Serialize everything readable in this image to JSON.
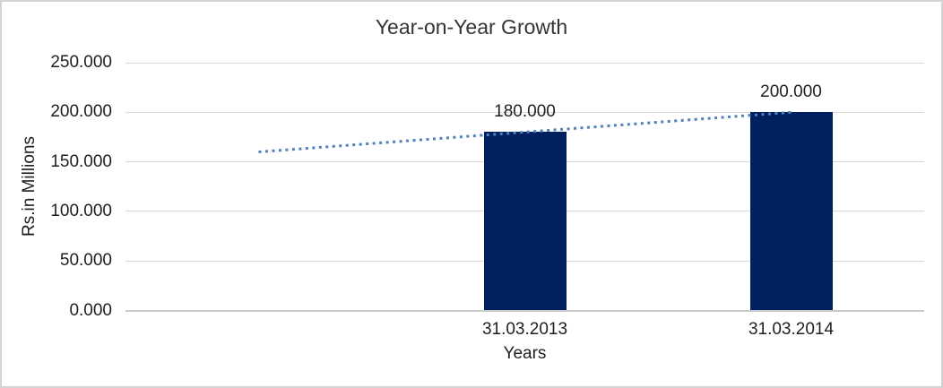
{
  "window": {
    "background": "#ffffff",
    "border_color": "#d3d3d3"
  },
  "chart_data": {
    "type": "bar",
    "title": "Year-on-Year Growth",
    "xlabel": "Years",
    "ylabel": "Rs.in Millions",
    "categories": [
      "",
      "31.03.2013",
      "31.03.2014"
    ],
    "values": [
      null,
      180,
      200
    ],
    "value_labels": [
      "",
      "180.000",
      "200.000"
    ],
    "ylim": [
      0,
      250
    ],
    "yticks": [
      0,
      50,
      100,
      150,
      200,
      250
    ],
    "ytick_labels": [
      "0.000",
      "50.000",
      "100.000",
      "150.000",
      "200.000",
      "250.000"
    ],
    "grid": "horizontal",
    "legend": "none",
    "bar_color": "#002060",
    "gridline_color": "#d9d9d9",
    "trendline": {
      "type": "linear",
      "style": "dotted",
      "color": "#4f81bd",
      "points": [
        {
          "category_index": 0,
          "value": 160
        },
        {
          "category_index": 2,
          "value": 200
        }
      ]
    }
  }
}
